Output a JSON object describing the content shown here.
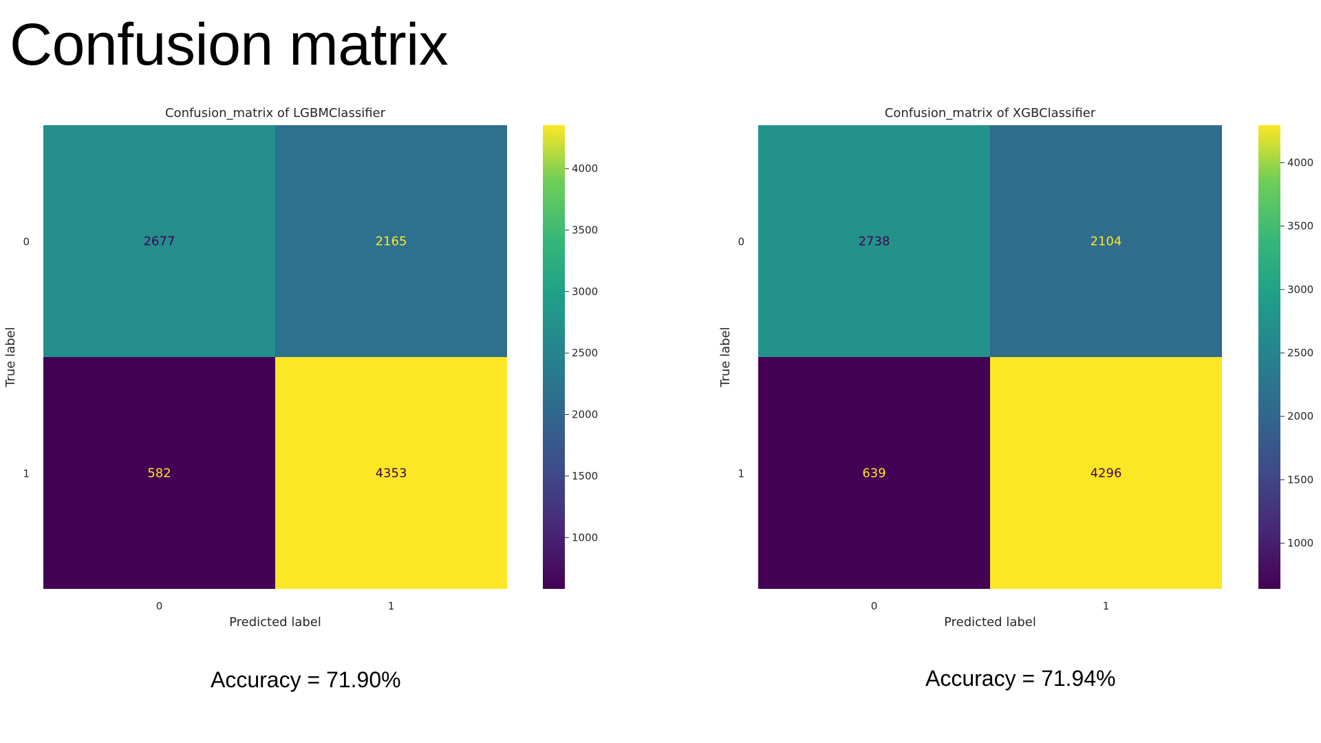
{
  "slide": {
    "title": "Confusion matrix"
  },
  "chart_data": [
    {
      "type": "heatmap",
      "title": "Confusion_matrix of LGBMClassifier",
      "xlabel": "Predicted label",
      "ylabel": "True label",
      "x_categories": [
        "0",
        "1"
      ],
      "y_categories": [
        "0",
        "1"
      ],
      "values": [
        [
          2677,
          2165
        ],
        [
          582,
          4353
        ]
      ],
      "colormap": "viridis",
      "colorbar": {
        "range": [
          582,
          4353
        ],
        "ticks": [
          1000,
          1500,
          2000,
          2500,
          3000,
          3500,
          4000
        ]
      },
      "accuracy_label": "Accuracy = 71.90%"
    },
    {
      "type": "heatmap",
      "title": "Confusion_matrix of XGBClassifier",
      "xlabel": "Predicted label",
      "ylabel": "True label",
      "x_categories": [
        "0",
        "1"
      ],
      "y_categories": [
        "0",
        "1"
      ],
      "values": [
        [
          2738,
          2104
        ],
        [
          639,
          4296
        ]
      ],
      "colormap": "viridis",
      "colorbar": {
        "range": [
          639,
          4296
        ],
        "ticks": [
          1000,
          1500,
          2000,
          2500,
          3000,
          3500,
          4000
        ]
      },
      "accuracy_label": "Accuracy = 71.94%"
    }
  ]
}
